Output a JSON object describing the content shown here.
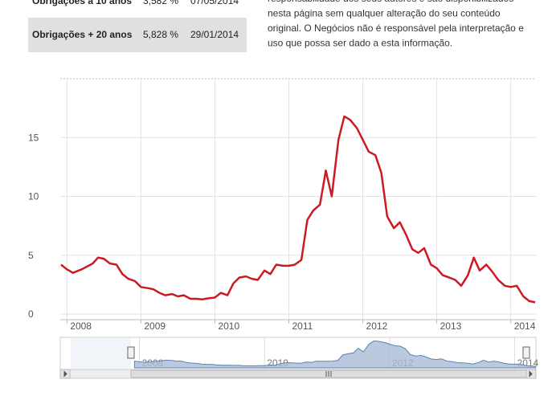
{
  "table": {
    "rows": [
      [
        "Obrigações a 10 anos",
        "3,582 %",
        "07/05/2014"
      ],
      [
        "Obrigações + 20 anos",
        "5,828 %",
        "29/01/2014"
      ]
    ]
  },
  "disclaimer": {
    "lines": [
      "responsabilidade dos seus autores e são disponibilizados",
      "nesta página sem qualquer alteração do seu conteúdo",
      "original. O Negócios não é responsável pela interpretação e",
      "uso que possa ser dado a esta informação."
    ]
  },
  "chart_data": {
    "type": "line",
    "x": [
      2007.92,
      2008.0,
      2008.08,
      2008.2,
      2008.35,
      2008.42,
      2008.5,
      2008.58,
      2008.67,
      2008.75,
      2008.83,
      2008.92,
      2009.0,
      2009.1,
      2009.17,
      2009.25,
      2009.33,
      2009.42,
      2009.5,
      2009.58,
      2009.67,
      2009.75,
      2009.83,
      2009.92,
      2010.0,
      2010.08,
      2010.17,
      2010.25,
      2010.33,
      2010.42,
      2010.5,
      2010.58,
      2010.67,
      2010.75,
      2010.83,
      2010.92,
      2011.0,
      2011.08,
      2011.17,
      2011.25,
      2011.33,
      2011.42,
      2011.5,
      2011.58,
      2011.67,
      2011.75,
      2011.83,
      2011.92,
      2012.0,
      2012.08,
      2012.17,
      2012.25,
      2012.33,
      2012.42,
      2012.5,
      2012.58,
      2012.67,
      2012.75,
      2012.83,
      2012.92,
      2013.0,
      2013.08,
      2013.17,
      2013.25,
      2013.33,
      2013.42,
      2013.5,
      2013.58,
      2013.67,
      2013.75,
      2013.83,
      2013.92,
      2014.0,
      2014.08,
      2014.17,
      2014.25,
      2014.33
    ],
    "series": [
      {
        "color": "#cc1a23",
        "values": [
          4.2,
          3.8,
          3.5,
          3.8,
          4.3,
          4.8,
          4.7,
          4.3,
          4.2,
          3.4,
          3.0,
          2.8,
          2.3,
          2.2,
          2.1,
          1.8,
          1.6,
          1.7,
          1.5,
          1.6,
          1.3,
          1.3,
          1.25,
          1.35,
          1.4,
          1.8,
          1.6,
          2.6,
          3.1,
          3.2,
          3.0,
          2.9,
          3.7,
          3.4,
          4.2,
          4.1,
          4.1,
          4.2,
          4.6,
          8.0,
          8.8,
          9.3,
          12.2,
          10.0,
          14.8,
          16.8,
          16.5,
          15.8,
          14.8,
          13.8,
          13.5,
          12.0,
          8.3,
          7.3,
          7.8,
          6.8,
          5.5,
          5.2,
          5.6,
          4.2,
          3.9,
          3.3,
          3.1,
          2.9,
          2.4,
          3.3,
          4.8,
          3.7,
          4.2,
          3.6,
          2.9,
          2.4,
          2.3,
          2.4,
          1.5,
          1.1,
          1.0
        ]
      }
    ],
    "xlim": [
      2007.91,
      2014.34
    ],
    "xticks": [
      2008,
      2009,
      2010,
      2011,
      2012,
      2013,
      2014
    ],
    "ylim": [
      0,
      20
    ],
    "yticks": [
      0,
      5,
      10,
      15
    ],
    "grid": true,
    "navigator_xlim": [
      2006.9,
      2014.34
    ],
    "navigator_xticks": [
      2008,
      2010,
      2012,
      2014
    ]
  }
}
